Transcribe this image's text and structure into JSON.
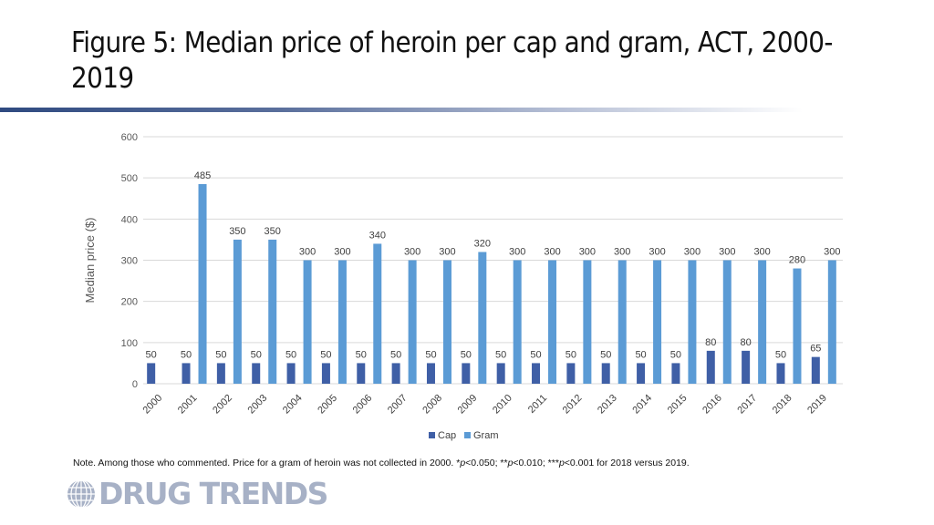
{
  "title": "Figure 5: Median price of heroin per cap and gram, ACT, 2000-2019",
  "note": {
    "prefix": "Note. Among those who commented. Price for a gram of heroin was not collected in 2000. *",
    "p": "p",
    "s1": "<0.050; **",
    "s2": "<0.010; ***",
    "s3": "<0.001 for 2018 versus 2019."
  },
  "logo": {
    "text": "DRUG TRENDS",
    "icon": "globe-icon"
  },
  "colors": {
    "cap": "#3f5fa6",
    "gram": "#5b9bd5",
    "grid": "#d9d9d9",
    "rule": "#2f4a80"
  },
  "chart_data": {
    "type": "bar",
    "ylabel": "Median price ($)",
    "ylim": [
      0,
      600
    ],
    "yticks": [
      0,
      100,
      200,
      300,
      400,
      500,
      600
    ],
    "grid": true,
    "legend_position": "bottom",
    "categories": [
      "2000",
      "2001",
      "2002",
      "2003",
      "2004",
      "2005",
      "2006",
      "2007",
      "2008",
      "2009",
      "2010",
      "2011",
      "2012",
      "2013",
      "2014",
      "2015",
      "2016",
      "2017",
      "2018",
      "2019"
    ],
    "series": [
      {
        "name": "Cap",
        "color": "#3f5fa6",
        "values": [
          50,
          50,
          50,
          50,
          50,
          50,
          50,
          50,
          50,
          50,
          50,
          50,
          50,
          50,
          50,
          50,
          80,
          80,
          50,
          65
        ]
      },
      {
        "name": "Gram",
        "color": "#5b9bd5",
        "values": [
          null,
          485,
          350,
          350,
          300,
          300,
          340,
          300,
          300,
          320,
          300,
          300,
          300,
          300,
          300,
          300,
          300,
          300,
          280,
          300
        ]
      }
    ]
  }
}
